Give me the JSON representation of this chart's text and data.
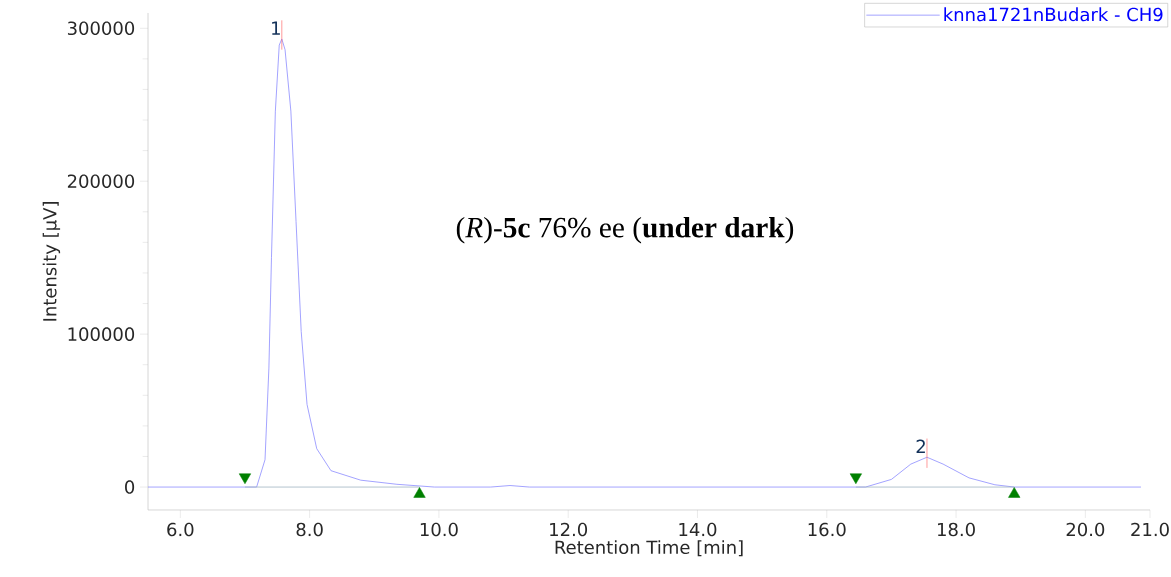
{
  "chart_data": {
    "type": "line",
    "xlabel": "Retention Time [min]",
    "ylabel": "Intensity [µV]",
    "xlim": [
      5.5,
      21.0
    ],
    "ylim": [
      -15000,
      310000
    ],
    "xticks": [
      {
        "value": 6,
        "label": "6.0"
      },
      {
        "value": 8,
        "label": "8.0"
      },
      {
        "value": 10,
        "label": "10.0"
      },
      {
        "value": 12,
        "label": "12.0"
      },
      {
        "value": 14,
        "label": "14.0"
      },
      {
        "value": 16,
        "label": "16.0"
      },
      {
        "value": 18,
        "label": "18.0"
      },
      {
        "value": 20,
        "label": "20.0"
      },
      {
        "value": 21,
        "label": "21.0"
      }
    ],
    "yticks": [
      0,
      100000,
      200000,
      300000
    ],
    "grid": false,
    "legend": "top right",
    "series": [
      {
        "name": "knna1721nBudark - CH9",
        "color": "#8c8cff",
        "x": [
          5.5,
          6.5,
          7.0,
          7.18,
          7.31,
          7.37,
          7.41,
          7.47,
          7.53,
          7.57,
          7.62,
          7.71,
          7.79,
          7.87,
          7.96,
          8.11,
          8.33,
          8.79,
          9.35,
          9.93,
          10.8,
          11.1,
          11.4,
          12.0,
          14.0,
          16.0,
          16.6,
          17.0,
          17.3,
          17.55,
          17.8,
          18.2,
          18.6,
          18.9,
          20.0,
          20.86
        ],
        "values": [
          0,
          0,
          0,
          0,
          17900,
          77800,
          150000,
          245800,
          289000,
          293000,
          286000,
          245800,
          173700,
          101700,
          54000,
          25100,
          10700,
          4500,
          1800,
          0,
          0,
          1000,
          0,
          0,
          0,
          0,
          0,
          5000,
          15000,
          19500,
          15000,
          6000,
          1500,
          0,
          0,
          0
        ]
      },
      {
        "type": "line",
        "color": "#a0b4c0",
        "x": [
          7.0,
          9.7
        ],
        "values": [
          0,
          0
        ]
      },
      {
        "type": "line",
        "color": "#a0b4c0",
        "x": [
          16.45,
          18.9
        ],
        "values": [
          0,
          0
        ]
      },
      {
        "type": "scatter",
        "color": "#008000",
        "marker": "triangle-down",
        "x": [
          7.0,
          16.45
        ],
        "values": [
          6500,
          6500
        ]
      },
      {
        "type": "scatter",
        "color": "#008000",
        "marker": "triangle",
        "x": [
          9.7,
          18.9
        ],
        "values": [
          -4600,
          -4600
        ]
      }
    ],
    "annotations": [
      {
        "text": "1",
        "x": 7.57,
        "y": 293000
      },
      {
        "text": "2",
        "x": 17.55,
        "y": 19500
      },
      "(*R*)-**5c** 76% ee (**under dark**)"
    ]
  }
}
